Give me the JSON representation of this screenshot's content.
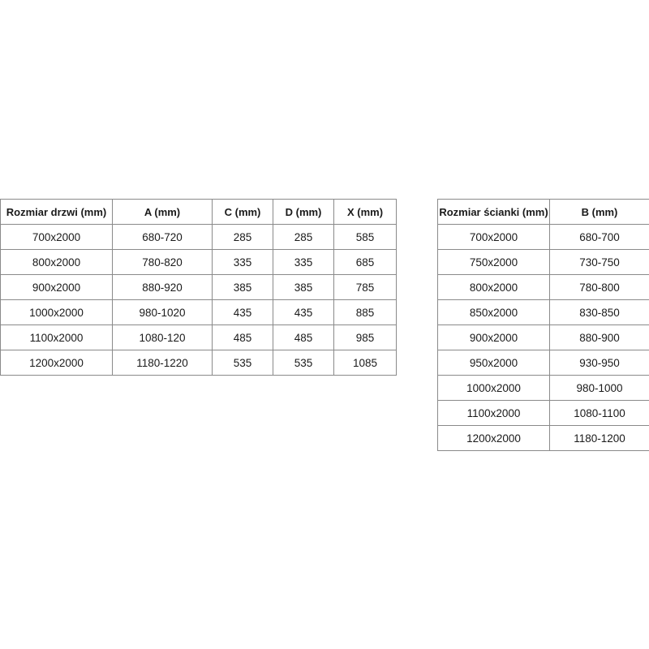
{
  "door_table": {
    "headers": [
      "Rozmiar drzwi (mm)",
      "A (mm)",
      "C (mm)",
      "D (mm)",
      "X (mm)"
    ],
    "rows": [
      [
        "700x2000",
        "680-720",
        "285",
        "285",
        "585"
      ],
      [
        "800x2000",
        "780-820",
        "335",
        "335",
        "685"
      ],
      [
        "900x2000",
        "880-920",
        "385",
        "385",
        "785"
      ],
      [
        "1000x2000",
        "980-1020",
        "435",
        "435",
        "885"
      ],
      [
        "1100x2000",
        "1080-120",
        "485",
        "485",
        "985"
      ],
      [
        "1200x2000",
        "1180-1220",
        "535",
        "535",
        "1085"
      ]
    ]
  },
  "wall_table": {
    "headers": [
      "Rozmiar ścianki (mm)",
      "B (mm)"
    ],
    "rows": [
      [
        "700x2000",
        "680-700"
      ],
      [
        "750x2000",
        "730-750"
      ],
      [
        "800x2000",
        "780-800"
      ],
      [
        "850x2000",
        "830-850"
      ],
      [
        "900x2000",
        "880-900"
      ],
      [
        "950x2000",
        "930-950"
      ],
      [
        "1000x2000",
        "980-1000"
      ],
      [
        "1100x2000",
        "1080-1100"
      ],
      [
        "1200x2000",
        "1180-1200"
      ]
    ]
  }
}
